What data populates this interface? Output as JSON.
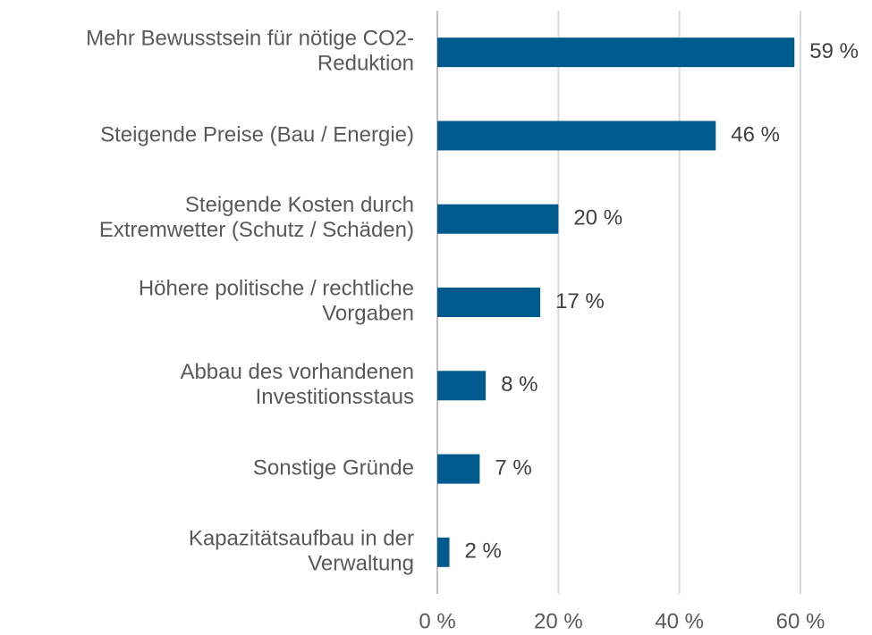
{
  "chart_data": {
    "type": "hbar",
    "categories": [
      "Mehr Bewusstsein für nötige CO2-\nReduktion",
      "Steigende Preise (Bau / Energie)",
      "Steigende Kosten durch\nExtremwetter (Schutz / Schäden)",
      "Höhere politische / rechtliche\nVorgaben",
      "Abbau des vorhandenen\nInvestitionsstaus",
      "Sonstige Gründe",
      "Kapazitätsaufbau in der\nVerwaltung"
    ],
    "values": [
      59,
      46,
      20,
      17,
      8,
      7,
      2
    ],
    "value_labels": [
      "59 %",
      "46 %",
      "20 %",
      "17 %",
      "8 %",
      "7 %",
      "2 %"
    ],
    "color": "#005a8e",
    "xlim": [
      0,
      60
    ],
    "xticks": [
      {
        "value": 0,
        "label": "0 %"
      },
      {
        "value": 20,
        "label": "20 %"
      },
      {
        "value": 40,
        "label": "40 %"
      },
      {
        "value": 60,
        "label": "60 %"
      }
    ],
    "grid": true
  }
}
